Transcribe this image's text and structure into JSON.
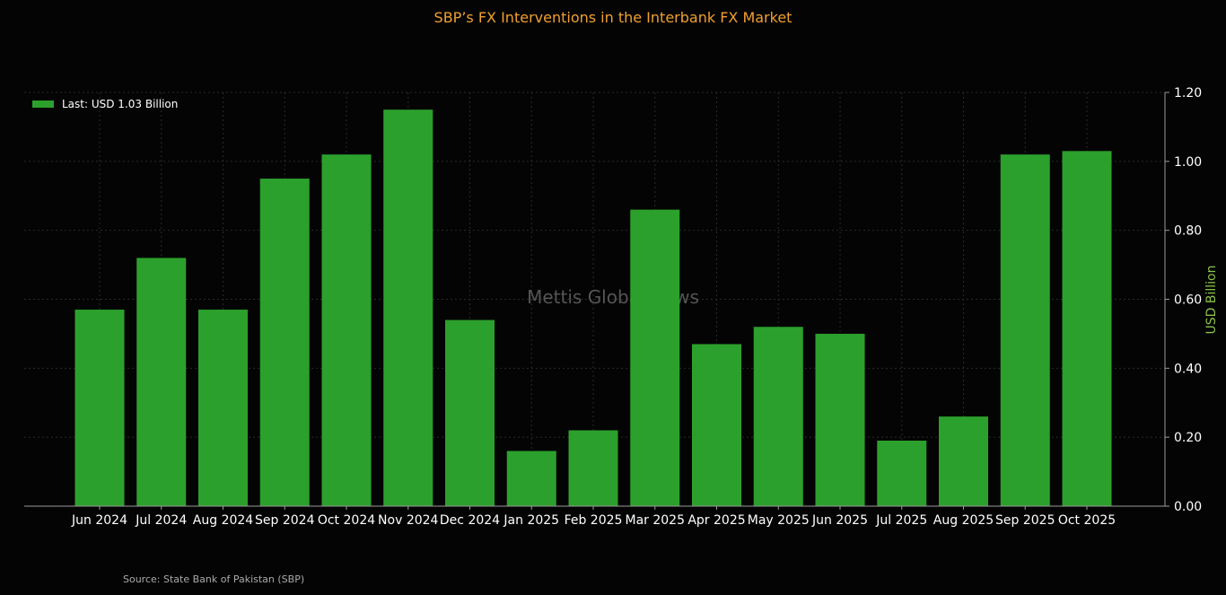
{
  "chart_data": {
    "type": "bar",
    "title": "SBP’s FX Interventions in the Interbank FX Market",
    "categories": [
      "Jun 2024",
      "Jul 2024",
      "Aug 2024",
      "Sep 2024",
      "Oct 2024",
      "Nov 2024",
      "Dec 2024",
      "Jan 2025",
      "Feb 2025",
      "Mar 2025",
      "Apr 2025",
      "May 2025",
      "Jun 2025",
      "Jul 2025",
      "Aug 2025",
      "Sep 2025",
      "Oct 2025"
    ],
    "values": [
      0.57,
      0.72,
      0.57,
      0.95,
      1.02,
      1.15,
      0.54,
      0.16,
      0.22,
      0.86,
      0.47,
      0.52,
      0.5,
      0.19,
      0.26,
      1.02,
      1.03
    ],
    "ylabel": "USD Billion",
    "ylim": [
      0,
      1.2
    ],
    "yticks": [
      0.0,
      0.2,
      0.4,
      0.6,
      0.8,
      1.0,
      1.2
    ],
    "ytick_labels": [
      "0.00",
      "0.20",
      "0.40",
      "0.60",
      "0.80",
      "1.00",
      "1.20"
    ],
    "legend": {
      "label": "Last: USD 1.03 Billion",
      "placement": "top-left"
    },
    "watermark": "Mettis Global News",
    "grid": true,
    "colors": {
      "bar": "#2ca02c",
      "title": "#f0a030",
      "ylabel": "#8bc34a",
      "background": "#040404"
    }
  },
  "source": "Source: State Bank of Pakistan (SBP)"
}
